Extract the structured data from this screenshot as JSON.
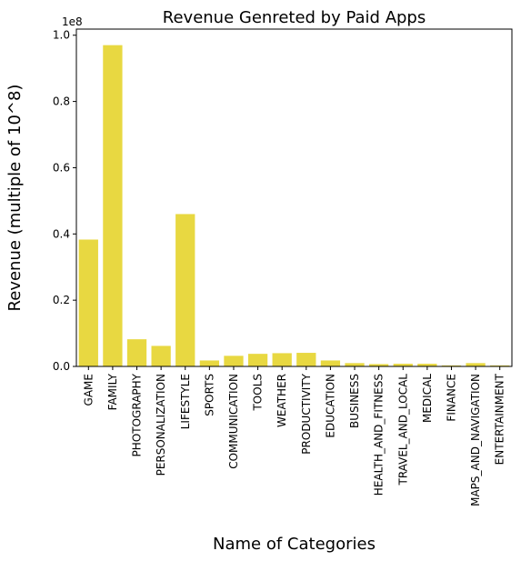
{
  "chart_data": {
    "type": "bar",
    "title": "Revenue Genreted by Paid Apps",
    "xlabel": "Name of Categories",
    "ylabel": "Revenue (multiple of 10^8)",
    "y_offset_label": "1e8",
    "bar_color": "#e8d841",
    "categories": [
      "GAME",
      "FAMILY",
      "PHOTOGRAPHY",
      "PERSONALIZATION",
      "LIFESTYLE",
      "SPORTS",
      "COMMUNICATION",
      "TOOLS",
      "WEATHER",
      "PRODUCTIVITY",
      "EDUCATION",
      "BUSINESS",
      "HEALTH_AND_FITNESS",
      "TRAVEL_AND_LOCAL",
      "MEDICAL",
      "FINANCE",
      "MAPS_AND_NAVIGATION",
      "ENTERTAINMENT"
    ],
    "values": [
      0.383,
      0.97,
      0.082,
      0.062,
      0.46,
      0.018,
      0.032,
      0.038,
      0.04,
      0.041,
      0.018,
      0.01,
      0.007,
      0.008,
      0.008,
      0.003,
      0.01,
      0.003
    ],
    "yticks": [
      0.0,
      0.2,
      0.4,
      0.6,
      0.8,
      1.0
    ],
    "ytick_labels": [
      "0.0",
      "0.2",
      "0.4",
      "0.6",
      "0.8",
      "1.0"
    ],
    "ylim": [
      0,
      1.0185
    ],
    "grid": false
  }
}
